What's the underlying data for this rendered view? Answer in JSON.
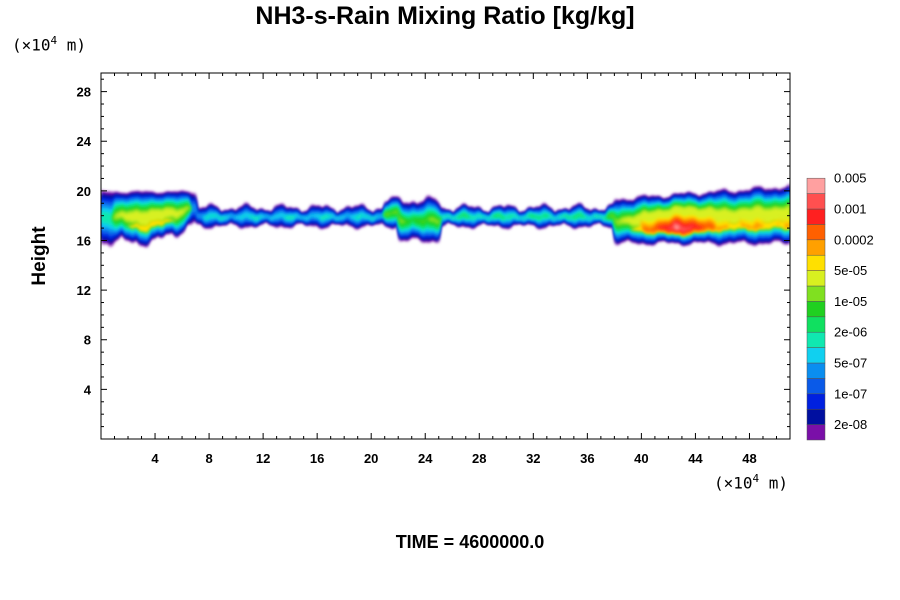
{
  "title": "NH3-s-Rain Mixing Ratio [kg/kg]",
  "scale_y": {
    "prefix": "(×10",
    "exp": "4",
    "suffix": " m)"
  },
  "scale_x": {
    "prefix": "(×10",
    "exp": "4",
    "suffix": " m)"
  },
  "footer": "TIME = 4600000.0",
  "chart_data": {
    "type": "heatmap",
    "title": "NH3-s-Rain Mixing Ratio [kg/kg]",
    "xlabel": "",
    "ylabel": "Height",
    "x_unit": "(×10^4 m)",
    "y_unit": "(×10^4 m)",
    "xlim": [
      0,
      51
    ],
    "ylim": [
      0,
      29.5
    ],
    "x_ticks": [
      4,
      8,
      12,
      16,
      20,
      24,
      28,
      32,
      36,
      40,
      44,
      48
    ],
    "y_ticks": [
      4,
      8,
      12,
      16,
      20,
      24,
      28
    ],
    "colorbar": {
      "colors": [
        "#7a0fa8",
        "#000fa0",
        "#0020e0",
        "#0a5ae8",
        "#0a8ef0",
        "#10d0f0",
        "#10e8b0",
        "#10e060",
        "#20d020",
        "#80e020",
        "#d8f020",
        "#ffe000",
        "#ffa000",
        "#ff6000",
        "#ff2020",
        "#ff5050",
        "#ffa0a0"
      ],
      "labels": [
        "2e-08",
        "1e-07",
        "5e-07",
        "2e-06",
        "1e-05",
        "5e-05",
        "0.0002",
        "0.001",
        "0.005"
      ]
    },
    "layer": {
      "y_range_approx": [
        15.5,
        20.5
      ],
      "regions": [
        {
          "x_range": [
            0,
            7
          ],
          "peak_level": "1e-05"
        },
        {
          "x_range": [
            7,
            38
          ],
          "peak_level": "2e-06"
        },
        {
          "x_range": [
            38,
            51
          ],
          "peak_level": "0.005"
        }
      ]
    }
  }
}
